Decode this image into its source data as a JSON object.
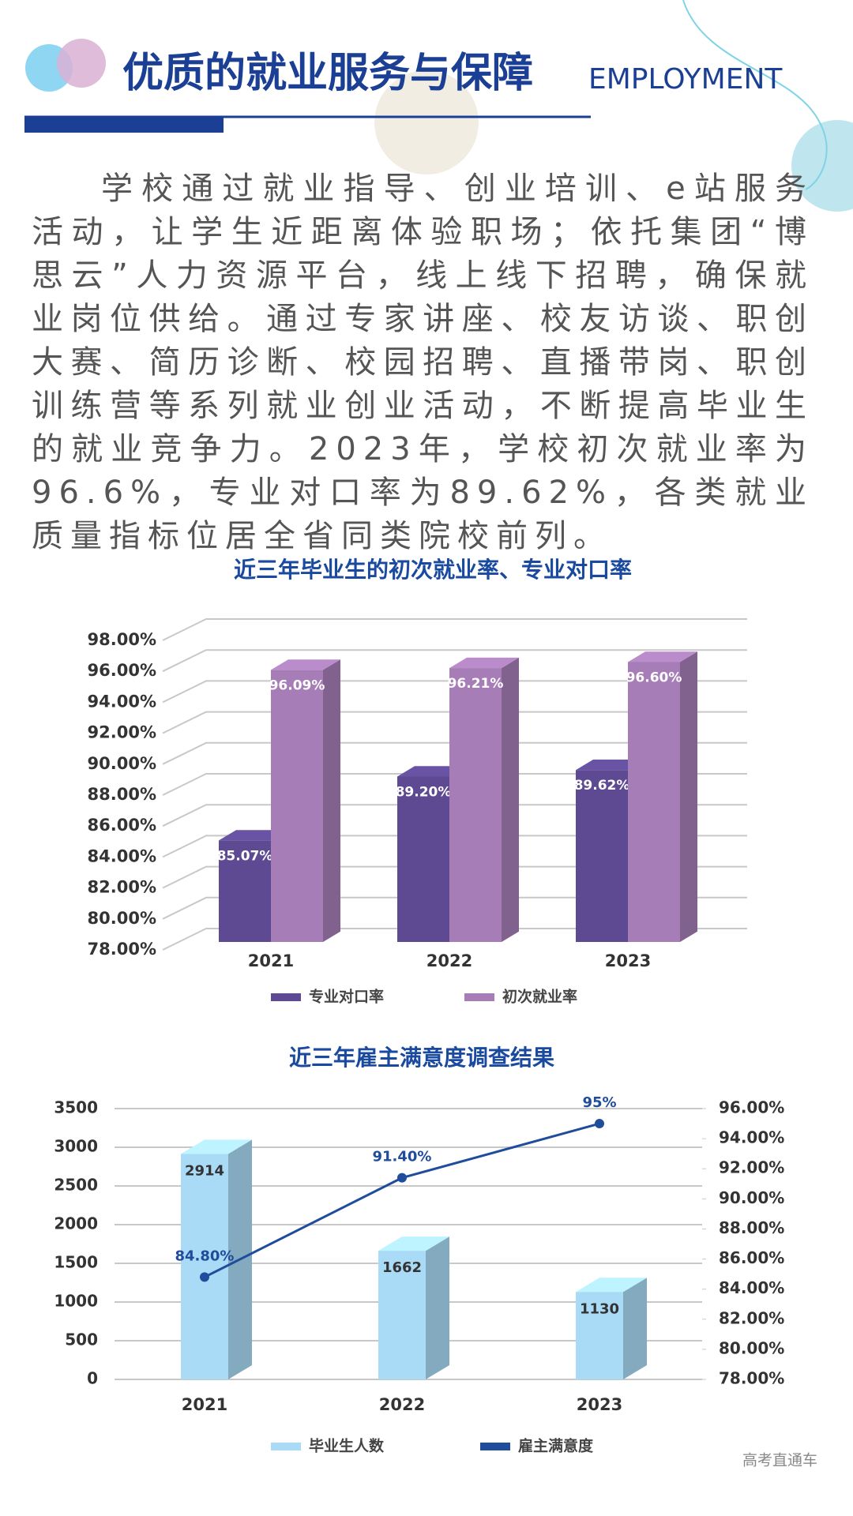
{
  "header": {
    "title": "优质的就业服务与保障",
    "subtitle": "EMPLOYMENT"
  },
  "paragraph": "学校通过就业指导、创业培训、e站服务活动，让学生近距离体验职场；依托集团“博思云”人力资源平台，线上线下招聘，确保就业岗位供给。通过专家讲座、校友访谈、职创大赛、简历诊断、校园招聘、直播带岗、职创训练营等系列就业创业活动，不断提高毕业生的就业竞争力。2023年，学校初次就业率为96.6%，专业对口率为89.62%，各类就业质量指标位居全省同类院校前列。",
  "chart_data": [
    {
      "type": "bar",
      "title": "近三年毕业生的初次就业率、专业对口率",
      "categories": [
        "2021",
        "2022",
        "2023"
      ],
      "series": [
        {
          "name": "专业对口率",
          "color": "#5e4a93",
          "values": [
            85.07,
            89.2,
            89.62
          ],
          "value_labels": [
            "85.07%",
            "89.20%",
            "89.62%"
          ]
        },
        {
          "name": "初次就业率",
          "color": "#a67db6",
          "values": [
            96.09,
            96.21,
            96.6
          ],
          "value_labels": [
            "96.09%",
            "96.21%",
            "96.60%"
          ]
        }
      ],
      "ylim": [
        78,
        98
      ],
      "yticks": [
        {
          "value": 78,
          "label": "78.00%"
        },
        {
          "value": 80,
          "label": "80.00%"
        },
        {
          "value": 82,
          "label": "82.00%"
        },
        {
          "value": 84,
          "label": "84.00%"
        },
        {
          "value": 86,
          "label": "86.00%"
        },
        {
          "value": 88,
          "label": "88.00%"
        },
        {
          "value": 90,
          "label": "90.00%"
        },
        {
          "value": 92,
          "label": "92.00%"
        },
        {
          "value": 94,
          "label": "94.00%"
        },
        {
          "value": 96,
          "label": "96.00%"
        },
        {
          "value": 98,
          "label": "98.00%"
        }
      ],
      "grid": true,
      "legend": "bottom"
    },
    {
      "type": "combo",
      "title": "近三年雇主满意度调查结果",
      "categories": [
        "2021",
        "2022",
        "2023"
      ],
      "series": [
        {
          "name": "毕业生人数",
          "color": "#a9daf6",
          "values": [
            2914,
            1662,
            1130
          ]
        },
        {
          "name": "雇主满意度",
          "color": "#1f4c9b",
          "values": [
            84.8,
            91.4,
            95
          ],
          "value_labels": [
            "84.80%",
            "91.40%",
            "95%"
          ],
          "axis": "y2"
        }
      ],
      "ylim": [
        0,
        3500
      ],
      "yticks": [
        0,
        500,
        1000,
        1500,
        2000,
        2500,
        3000,
        3500
      ],
      "y2lim": [
        78,
        96
      ],
      "y2ticks": [
        {
          "value": 78,
          "label": "78.00%"
        },
        {
          "value": 80,
          "label": "80.00%"
        },
        {
          "value": 82,
          "label": "82.00%"
        },
        {
          "value": 84,
          "label": "84.00%"
        },
        {
          "value": 86,
          "label": "86.00%"
        },
        {
          "value": 88,
          "label": "88.00%"
        },
        {
          "value": 90,
          "label": "90.00%"
        },
        {
          "value": 92,
          "label": "92.00%"
        },
        {
          "value": 94,
          "label": "94.00%"
        },
        {
          "value": 96,
          "label": "96.00%"
        }
      ],
      "grid": true,
      "legend": "bottom"
    }
  ],
  "watermark": "高考直通车"
}
